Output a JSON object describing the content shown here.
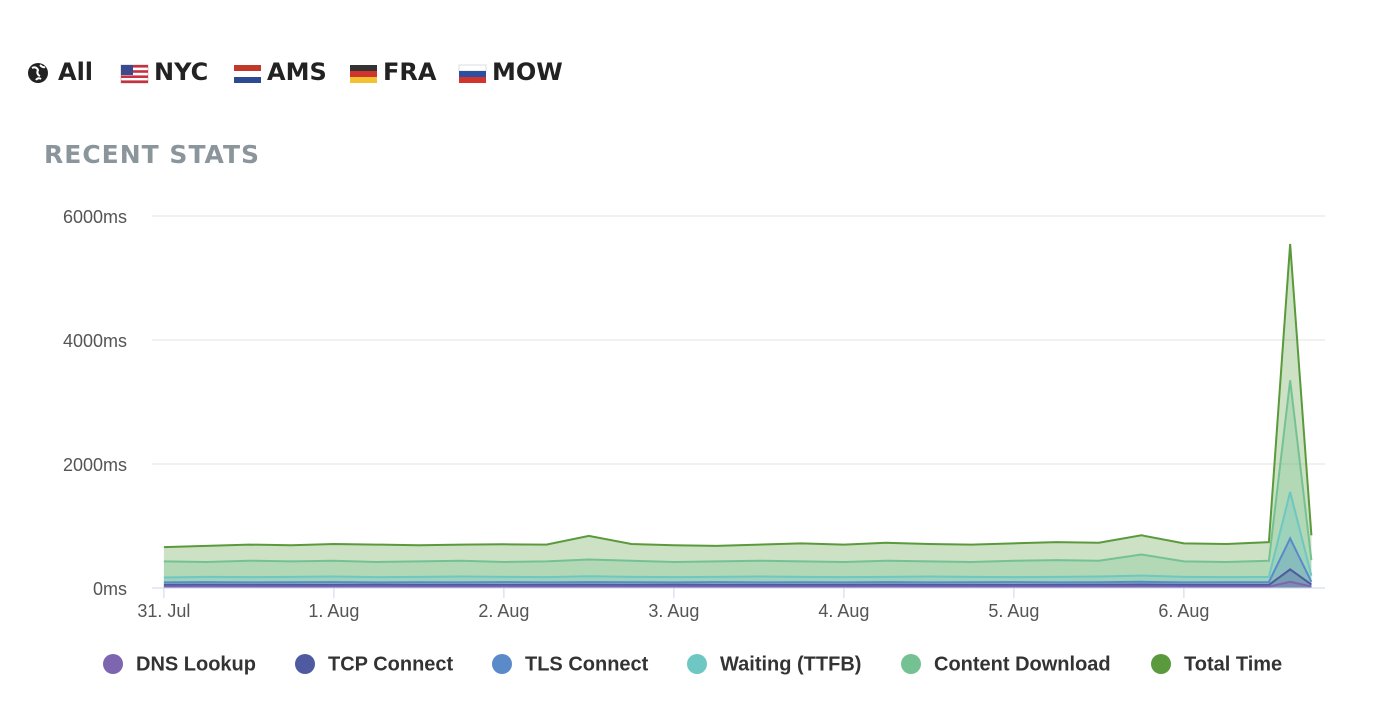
{
  "tabs": [
    "All",
    "NYC",
    "AMS",
    "FRA",
    "MOW"
  ],
  "chart_data": {
    "type": "area",
    "title": "RECENT STATS",
    "x": [
      0,
      0.25,
      0.5,
      0.75,
      1,
      1.25,
      1.5,
      1.75,
      2,
      2.25,
      2.5,
      2.75,
      3,
      3.25,
      3.5,
      3.75,
      4,
      4.25,
      4.5,
      4.75,
      5,
      5.25,
      5.5,
      5.75,
      6,
      6.25,
      6.5,
      6.625,
      6.75
    ],
    "xlim": [
      -0.07,
      6.83
    ],
    "xticks": [
      {
        "value": 0,
        "label": "31. Jul"
      },
      {
        "value": 1,
        "label": "1. Aug"
      },
      {
        "value": 2,
        "label": "2. Aug"
      },
      {
        "value": 3,
        "label": "3. Aug"
      },
      {
        "value": 4,
        "label": "4. Aug"
      },
      {
        "value": 5,
        "label": "5. Aug"
      },
      {
        "value": 6,
        "label": "6. Aug"
      }
    ],
    "ylim": [
      0,
      6000
    ],
    "yticks": [
      {
        "value": 0,
        "label": "0ms"
      },
      {
        "value": 2000,
        "label": "2000ms"
      },
      {
        "value": 4000,
        "label": "4000ms"
      },
      {
        "value": 6000,
        "label": "6000ms"
      }
    ],
    "grid": true,
    "series": [
      {
        "name": "DNS Lookup",
        "color": "#7e65b0",
        "values": [
          20,
          20,
          22,
          20,
          20,
          21,
          20,
          20,
          22,
          20,
          21,
          20,
          20,
          22,
          20,
          20,
          21,
          20,
          20,
          22,
          20,
          20,
          21,
          24,
          20,
          20,
          22,
          100,
          24
        ]
      },
      {
        "name": "TCP Connect",
        "color": "#4f5aa0",
        "values": [
          50,
          52,
          50,
          51,
          50,
          52,
          50,
          50,
          51,
          50,
          53,
          50,
          52,
          50,
          50,
          51,
          50,
          52,
          50,
          50,
          51,
          50,
          52,
          56,
          50,
          51,
          50,
          300,
          55
        ]
      },
      {
        "name": "TLS Connect",
        "color": "#5b8ac8",
        "values": [
          90,
          95,
          90,
          92,
          95,
          90,
          92,
          90,
          95,
          90,
          95,
          92,
          90,
          95,
          90,
          92,
          90,
          95,
          90,
          92,
          95,
          90,
          92,
          100,
          90,
          92,
          95,
          800,
          100
        ]
      },
      {
        "name": "Waiting (TTFB)",
        "color": "#6ec7c2",
        "values": [
          170,
          180,
          175,
          180,
          185,
          175,
          180,
          185,
          180,
          175,
          190,
          180,
          175,
          180,
          185,
          180,
          175,
          180,
          185,
          180,
          175,
          180,
          185,
          200,
          180,
          175,
          180,
          1550,
          200
        ]
      },
      {
        "name": "Content Download",
        "color": "#74c294",
        "values": [
          430,
          420,
          440,
          430,
          440,
          420,
          430,
          440,
          420,
          430,
          460,
          440,
          420,
          430,
          440,
          430,
          420,
          440,
          430,
          420,
          440,
          450,
          440,
          540,
          430,
          420,
          440,
          3350,
          450
        ]
      },
      {
        "name": "Total Time",
        "color": "#5a9a3c",
        "values": [
          660,
          680,
          700,
          690,
          710,
          700,
          690,
          700,
          705,
          700,
          840,
          710,
          690,
          680,
          700,
          720,
          700,
          730,
          710,
          700,
          720,
          740,
          730,
          850,
          720,
          710,
          740,
          5550,
          850
        ]
      }
    ]
  }
}
